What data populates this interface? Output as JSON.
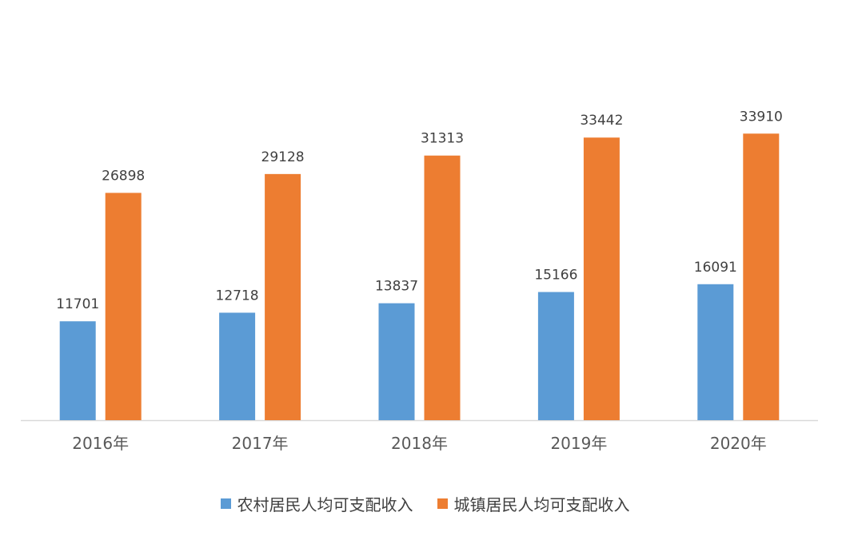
{
  "chart_data": {
    "type": "bar",
    "categories": [
      "2016年",
      "2017年",
      "2018年",
      "2019年",
      "2020年"
    ],
    "series": [
      {
        "name": "农村居民人均可支配收入",
        "values": [
          11701,
          12718,
          13837,
          15166,
          16091
        ],
        "color": "#5b9bd5"
      },
      {
        "name": "城镇居民人均可支配收入",
        "values": [
          26898,
          29128,
          31313,
          33442,
          33910
        ],
        "color": "#ed7d31"
      }
    ],
    "ylim": [
      0,
      38000
    ],
    "data_labels": true,
    "grid": false,
    "legend_position": "bottom"
  }
}
